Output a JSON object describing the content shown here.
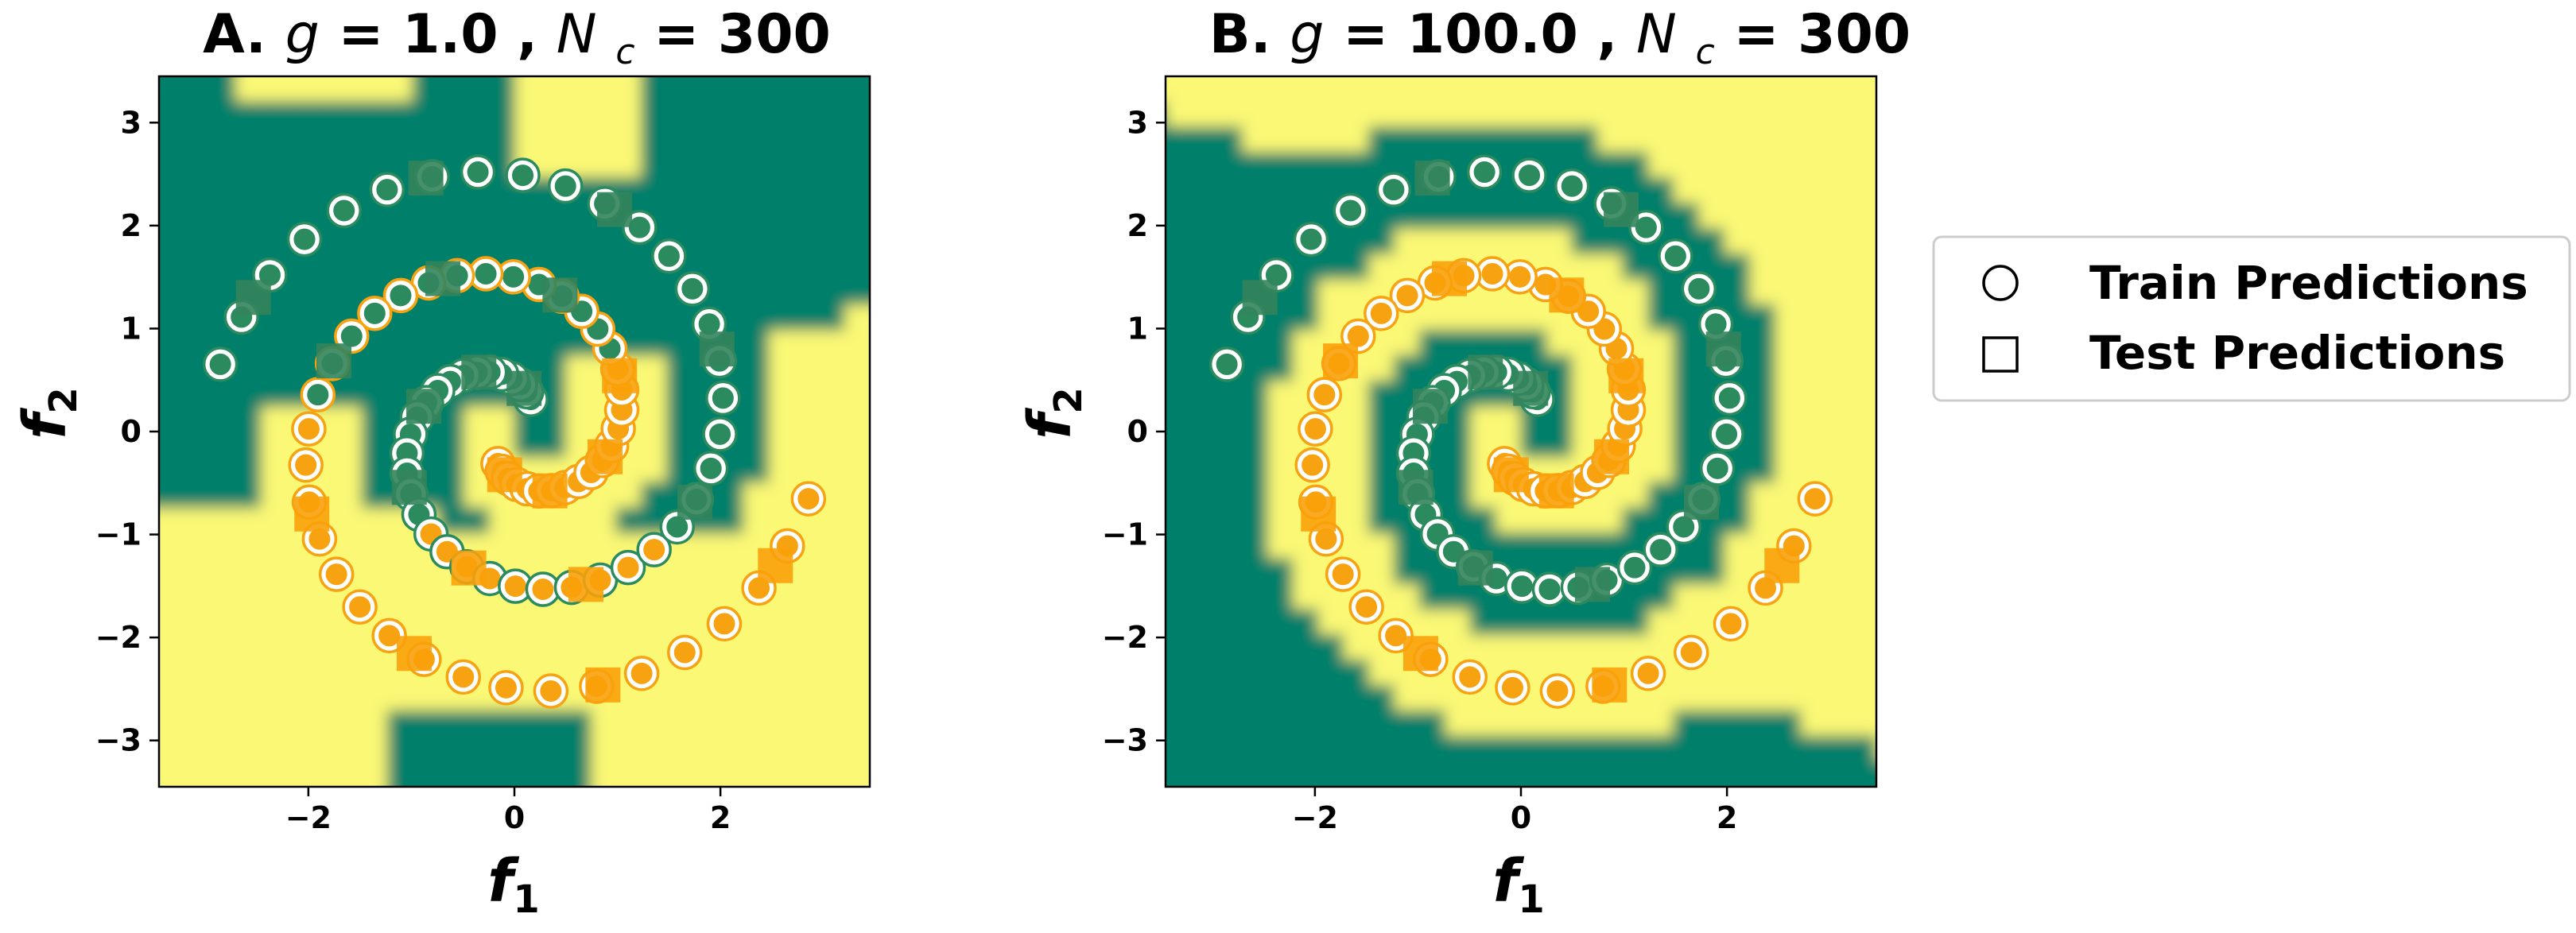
{
  "chart_data": [
    {
      "type": "scatter",
      "panel_label": "A.",
      "title_params": [
        {
          "symbol": "g",
          "sub": "",
          "value": "1.0"
        },
        {
          "symbol": "N",
          "sub": "c",
          "value": "300"
        }
      ],
      "xlabel": {
        "symbol": "f",
        "sub": "1"
      },
      "ylabel": {
        "symbol": "f",
        "sub": "2"
      },
      "xlim": [
        -3.45,
        3.45
      ],
      "ylim": [
        -3.45,
        3.45
      ],
      "xticks": [
        -2,
        0,
        2
      ],
      "yticks": [
        -3,
        -2,
        -1,
        0,
        1,
        2,
        3
      ],
      "decision_boundary": "A"
    },
    {
      "type": "scatter",
      "panel_label": "B.",
      "title_params": [
        {
          "symbol": "g",
          "sub": "",
          "value": "100.0"
        },
        {
          "symbol": "N",
          "sub": "c",
          "value": "300"
        }
      ],
      "xlabel": {
        "symbol": "f",
        "sub": "1"
      },
      "ylabel": {
        "symbol": "f",
        "sub": "2"
      },
      "xlim": [
        -3.45,
        3.45
      ],
      "ylim": [
        -3.45,
        3.45
      ],
      "xticks": [
        -2,
        0,
        2
      ],
      "yticks": [
        -3,
        -2,
        -1,
        0,
        1,
        2,
        3
      ],
      "decision_boundary": "B"
    }
  ],
  "spirals": {
    "train_points_per_arm": 48,
    "test_points_per_arm": 11,
    "theta_start": 1.1,
    "theta_end": 9.2,
    "radius_per_radian": 0.3183
  },
  "legend": {
    "placement": "right",
    "items": [
      {
        "marker": "circle",
        "label": "Train Predictions"
      },
      {
        "marker": "square",
        "label": "Test Predictions"
      }
    ]
  },
  "colors": {
    "class0_region": "#027f6b",
    "class1_region": "#fbf875",
    "class0_point": "#2b8a5e",
    "class1_point": "#f7a311",
    "test_class0": "#33845c",
    "test_class1": "#f9a10a",
    "ring": "#ffffff",
    "legend_border": "#cccccc"
  }
}
